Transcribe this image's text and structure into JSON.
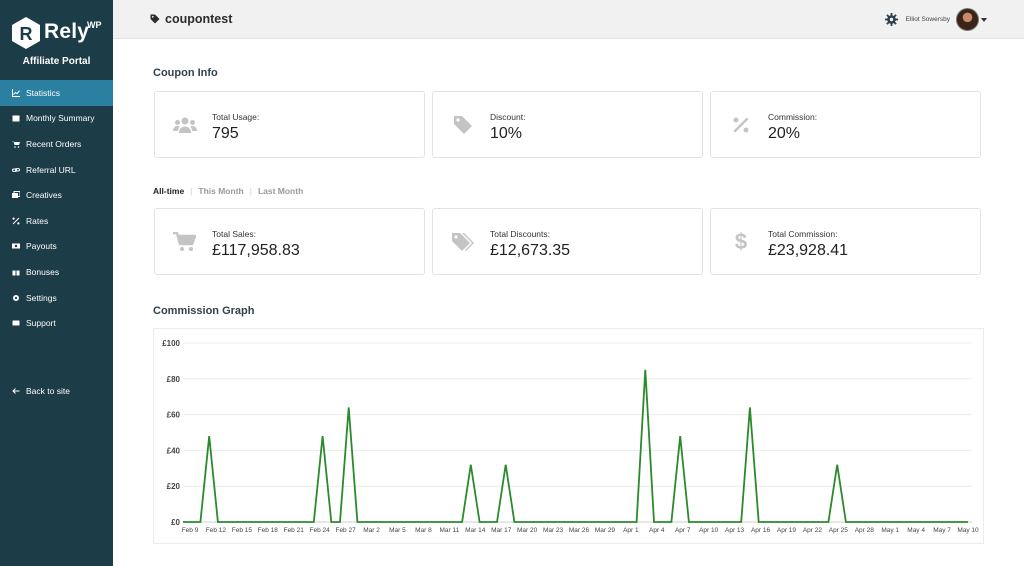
{
  "sidebar": {
    "brand": "Rely",
    "brand_sup": "WP",
    "portal_title": "Affiliate Portal",
    "items": [
      {
        "label": "Statistics",
        "icon": "chart-icon",
        "active": true
      },
      {
        "label": "Monthly Summary",
        "icon": "calendar-icon"
      },
      {
        "label": "Recent Orders",
        "icon": "cart-icon"
      },
      {
        "label": "Referral URL",
        "icon": "link-icon"
      },
      {
        "label": "Creatives",
        "icon": "images-icon"
      },
      {
        "label": "Rates",
        "icon": "percent-icon"
      },
      {
        "label": "Payouts",
        "icon": "money-icon"
      },
      {
        "label": "Bonuses",
        "icon": "gift-icon"
      },
      {
        "label": "Settings",
        "icon": "gear-icon"
      },
      {
        "label": "Support",
        "icon": "support-icon"
      }
    ],
    "back_label": "Back to site"
  },
  "header": {
    "title": "coupontest",
    "user_name": "Elliot Sowersby"
  },
  "coupon_info": {
    "heading": "Coupon Info",
    "cards": [
      {
        "label": "Total Usage:",
        "value": "795",
        "icon": "users-icon"
      },
      {
        "label": "Discount:",
        "value": "10%",
        "icon": "tag-icon"
      },
      {
        "label": "Commission:",
        "value": "20%",
        "icon": "percent-icon"
      }
    ]
  },
  "filters": {
    "all_time": "All-time",
    "this_month": "This Month",
    "last_month": "Last Month"
  },
  "totals": {
    "cards": [
      {
        "label": "Total Sales:",
        "value": "£117,958.83",
        "icon": "cart-icon"
      },
      {
        "label": "Total Discounts:",
        "value": "£12,673.35",
        "icon": "tags-icon"
      },
      {
        "label": "Total Commission:",
        "value": "£23,928.41",
        "icon": "dollar-icon"
      }
    ]
  },
  "graph": {
    "heading": "Commission Graph"
  },
  "colors": {
    "sidebar": "#1c3c47",
    "active": "#2b7fa0",
    "line": "#2b8a2b"
  },
  "chart_data": {
    "type": "line",
    "yticks": [
      "£0",
      "£20",
      "£40",
      "£60",
      "£80",
      "£100"
    ],
    "ylim": [
      0,
      100
    ],
    "xticks": [
      "Feb 9",
      "Feb 12",
      "Feb 15",
      "Feb 18",
      "Feb 21",
      "Feb 24",
      "Feb 27",
      "Mar 2",
      "Mar 5",
      "Mar 8",
      "Mar 11",
      "Mar 14",
      "Mar 17",
      "Mar 20",
      "Mar 23",
      "Mar 26",
      "Mar 29",
      "Apr 1",
      "Apr 4",
      "Apr 7",
      "Apr 10",
      "Apr 13",
      "Apr 16",
      "Apr 19",
      "Apr 22",
      "Apr 25",
      "Apr 28",
      "May 1",
      "May 4",
      "May 7",
      "May 10"
    ],
    "grid": true,
    "series": [
      {
        "x_days": [
          0,
          1,
          2,
          3,
          4,
          5,
          6,
          7,
          8,
          9,
          10,
          11,
          12,
          13,
          14,
          15,
          16,
          17,
          18,
          19,
          20,
          21,
          22,
          23,
          24,
          25,
          26,
          27,
          28,
          29,
          30,
          31,
          32,
          33,
          34,
          35,
          36,
          37,
          38,
          39,
          40,
          41,
          42,
          43,
          44,
          45,
          46,
          47,
          48,
          49,
          50,
          51,
          52,
          53,
          54,
          55,
          56,
          57,
          58,
          59,
          60,
          61,
          62,
          63,
          64,
          65,
          66,
          67,
          68,
          69,
          70,
          71,
          72,
          73,
          74,
          75,
          76,
          77,
          78,
          79,
          80,
          81,
          82,
          83,
          84,
          85,
          86,
          87,
          88,
          89,
          90
        ],
        "values": [
          0,
          0,
          0,
          48,
          0,
          0,
          0,
          0,
          0,
          0,
          0,
          0,
          0,
          0,
          0,
          0,
          48,
          0,
          0,
          64,
          0,
          0,
          0,
          0,
          0,
          0,
          0,
          0,
          0,
          0,
          0,
          0,
          0,
          32,
          0,
          0,
          0,
          32,
          0,
          0,
          0,
          0,
          0,
          0,
          0,
          0,
          0,
          0,
          0,
          0,
          0,
          0,
          0,
          85,
          0,
          0,
          0,
          48,
          0,
          0,
          0,
          0,
          0,
          0,
          0,
          64,
          0,
          0,
          0,
          0,
          0,
          0,
          0,
          0,
          0,
          32,
          0,
          0,
          0,
          0,
          0,
          0,
          0,
          0,
          0,
          0,
          0,
          0,
          0,
          0,
          0
        ]
      }
    ]
  }
}
